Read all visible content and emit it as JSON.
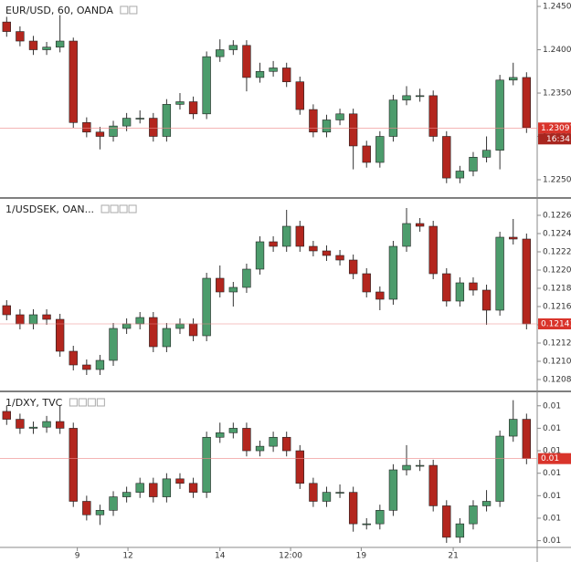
{
  "chart_data": [
    {
      "type": "candlestick",
      "title": "EUR/USD, 60, OANDA",
      "up_color": "#4c9c6c",
      "down_color": "#b3261e",
      "open": [
        1.2432,
        1.2421,
        1.241,
        1.24,
        1.2403,
        1.241,
        1.2316,
        1.2305,
        1.23,
        1.2312,
        1.2321,
        1.2321,
        1.23,
        1.2337,
        1.234,
        1.2326,
        1.2392,
        1.24,
        1.2405,
        1.2368,
        1.2375,
        1.2379,
        1.2363,
        1.2331,
        1.2305,
        1.2319,
        1.2326,
        1.2289,
        1.227,
        1.23,
        1.2342,
        1.2347,
        1.2347,
        1.23,
        1.2252,
        1.226,
        1.2276,
        1.2284,
        1.2365,
        1.2368
      ],
      "high": [
        1.2438,
        1.2427,
        1.2416,
        1.2409,
        1.244,
        1.2414,
        1.2322,
        1.2311,
        1.2318,
        1.2327,
        1.233,
        1.2327,
        1.2343,
        1.235,
        1.2346,
        1.2398,
        1.2412,
        1.2411,
        1.2411,
        1.2385,
        1.2387,
        1.2385,
        1.2369,
        1.2337,
        1.2325,
        1.2332,
        1.2332,
        1.2295,
        1.2306,
        1.2348,
        1.2358,
        1.2355,
        1.2353,
        1.2306,
        1.2266,
        1.2282,
        1.23,
        1.2371,
        1.2385,
        1.2374
      ],
      "low": [
        1.2415,
        1.2404,
        1.2394,
        1.2394,
        1.2397,
        1.231,
        1.2299,
        1.2285,
        1.2294,
        1.2306,
        1.2315,
        1.2294,
        1.2294,
        1.2331,
        1.232,
        1.232,
        1.2386,
        1.2394,
        1.2352,
        1.2362,
        1.2369,
        1.2357,
        1.2325,
        1.2299,
        1.2299,
        1.2313,
        1.2262,
        1.2264,
        1.2264,
        1.2294,
        1.2336,
        1.234,
        1.2294,
        1.2246,
        1.2246,
        1.2254,
        1.227,
        1.2262,
        1.2359,
        1.2304
      ],
      "close": [
        1.2421,
        1.241,
        1.24,
        1.2403,
        1.241,
        1.2316,
        1.2305,
        1.23,
        1.2312,
        1.2321,
        1.2321,
        1.23,
        1.2337,
        1.234,
        1.2326,
        1.2392,
        1.24,
        1.2405,
        1.2368,
        1.2375,
        1.2379,
        1.2363,
        1.2331,
        1.2305,
        1.2319,
        1.2326,
        1.2289,
        1.227,
        1.23,
        1.2342,
        1.2347,
        1.2347,
        1.23,
        1.2252,
        1.226,
        1.2276,
        1.2284,
        1.2365,
        1.2368,
        1.231
      ],
      "ylim": [
        1.223,
        1.24574
      ],
      "yticks": [
        {
          "value": 1.245,
          "label": "1.24500"
        },
        {
          "value": 1.24,
          "label": "1.24000"
        },
        {
          "value": 1.235,
          "label": "1.23500"
        },
        {
          "value": 1.23,
          "label": "1.23000"
        },
        {
          "value": 1.225,
          "label": "1.22500"
        }
      ],
      "last_price": {
        "value": 1.23097,
        "label": "1.23097"
      },
      "countdown": "16:34"
    },
    {
      "type": "candlestick",
      "title": "1/USDSEK, OAN...",
      "up_color": "#4c9c6c",
      "down_color": "#b3261e",
      "open": [
        0.12161,
        0.12151,
        0.12141,
        0.12151,
        0.12146,
        0.12111,
        0.12096,
        0.12091,
        0.12101,
        0.12136,
        0.12141,
        0.12148,
        0.12116,
        0.12136,
        0.12141,
        0.12128,
        0.12191,
        0.12176,
        0.12181,
        0.12201,
        0.12231,
        0.12226,
        0.12248,
        0.12226,
        0.12221,
        0.12216,
        0.12211,
        0.12196,
        0.12176,
        0.12168,
        0.12226,
        0.12251,
        0.12248,
        0.12196,
        0.12166,
        0.12186,
        0.12178,
        0.12156,
        0.12236,
        0.12234
      ],
      "high": [
        0.12167,
        0.12157,
        0.12157,
        0.12157,
        0.12152,
        0.12117,
        0.12102,
        0.12107,
        0.12142,
        0.12147,
        0.12154,
        0.12154,
        0.12142,
        0.12147,
        0.12147,
        0.12197,
        0.12205,
        0.12187,
        0.12207,
        0.12237,
        0.12237,
        0.12266,
        0.12254,
        0.12232,
        0.12227,
        0.12222,
        0.12217,
        0.12202,
        0.12182,
        0.12232,
        0.12268,
        0.12257,
        0.12254,
        0.12202,
        0.12192,
        0.12192,
        0.12184,
        0.12242,
        0.12256,
        0.1224
      ],
      "low": [
        0.12145,
        0.12135,
        0.12135,
        0.1214,
        0.12105,
        0.1209,
        0.12085,
        0.12085,
        0.12095,
        0.1213,
        0.12135,
        0.1211,
        0.1211,
        0.1213,
        0.12122,
        0.12122,
        0.1217,
        0.1216,
        0.12175,
        0.12195,
        0.1222,
        0.1222,
        0.1222,
        0.12215,
        0.1221,
        0.12205,
        0.1219,
        0.1217,
        0.12156,
        0.12162,
        0.1222,
        0.12242,
        0.1219,
        0.1216,
        0.1216,
        0.12172,
        0.1214,
        0.1215,
        0.12228,
        0.12135
      ],
      "close": [
        0.12151,
        0.12141,
        0.12151,
        0.12146,
        0.12111,
        0.12096,
        0.12091,
        0.12101,
        0.12136,
        0.12141,
        0.12148,
        0.12116,
        0.12136,
        0.12141,
        0.12128,
        0.12191,
        0.12176,
        0.12181,
        0.12201,
        0.12231,
        0.12226,
        0.12248,
        0.12226,
        0.12221,
        0.12216,
        0.12211,
        0.12196,
        0.12176,
        0.12168,
        0.12226,
        0.12251,
        0.12248,
        0.12196,
        0.12166,
        0.12186,
        0.12178,
        0.12156,
        0.12236,
        0.12234,
        0.12141
      ],
      "ylim": [
        0.12068,
        0.12278
      ],
      "yticks": [
        {
          "value": 0.1226,
          "label": "0.12260"
        },
        {
          "value": 0.1224,
          "label": "0.12240"
        },
        {
          "value": 0.1222,
          "label": "0.12220"
        },
        {
          "value": 0.122,
          "label": "0.12200"
        },
        {
          "value": 0.1218,
          "label": "0.12180"
        },
        {
          "value": 0.1216,
          "label": "0.12160"
        },
        {
          "value": 0.1214,
          "label": "0.12140"
        },
        {
          "value": 0.1212,
          "label": "0.12120"
        },
        {
          "value": 0.121,
          "label": "0.12100"
        },
        {
          "value": 0.1208,
          "label": "0.12080"
        }
      ],
      "last_price": {
        "value": 0.12141,
        "label": "0.12141"
      }
    },
    {
      "type": "candlestick",
      "title": "1/DXY, TVC",
      "up_color": "#4c9c6c",
      "down_color": "#b3261e",
      "open": [
        0.011195,
        0.011188,
        0.01118,
        0.011181,
        0.011186,
        0.01118,
        0.011115,
        0.011103,
        0.011107,
        0.011119,
        0.011123,
        0.011131,
        0.011119,
        0.011135,
        0.011131,
        0.011123,
        0.011172,
        0.011176,
        0.01118,
        0.01116,
        0.011164,
        0.011172,
        0.01116,
        0.011131,
        0.011115,
        0.011123,
        0.011123,
        0.011095,
        0.011095,
        0.011107,
        0.011143,
        0.011147,
        0.011147,
        0.011111,
        0.011083,
        0.011095,
        0.011111,
        0.011115,
        0.011173,
        0.011188
      ],
      "high": [
        0.0112,
        0.011193,
        0.011186,
        0.011191,
        0.0112,
        0.011185,
        0.01112,
        0.011112,
        0.011124,
        0.011128,
        0.011136,
        0.011136,
        0.01114,
        0.01114,
        0.011136,
        0.011177,
        0.011185,
        0.011185,
        0.011185,
        0.011169,
        0.011177,
        0.011177,
        0.011165,
        0.011136,
        0.011128,
        0.01113,
        0.011128,
        0.0111,
        0.011112,
        0.011148,
        0.011165,
        0.011152,
        0.011152,
        0.011116,
        0.0111,
        0.011116,
        0.011125,
        0.011178,
        0.011205,
        0.011193
      ],
      "low": [
        0.011183,
        0.011175,
        0.011175,
        0.011176,
        0.011175,
        0.01111,
        0.011098,
        0.011094,
        0.011102,
        0.011114,
        0.011118,
        0.011114,
        0.011114,
        0.011126,
        0.011118,
        0.011118,
        0.011167,
        0.011171,
        0.011155,
        0.011155,
        0.011159,
        0.011155,
        0.011126,
        0.01111,
        0.01111,
        0.011118,
        0.011088,
        0.01109,
        0.01109,
        0.011102,
        0.011138,
        0.011142,
        0.011106,
        0.011078,
        0.011078,
        0.01109,
        0.011106,
        0.01111,
        0.011168,
        0.011148
      ],
      "close": [
        0.011188,
        0.01118,
        0.011181,
        0.011186,
        0.01118,
        0.011115,
        0.011103,
        0.011107,
        0.011119,
        0.011123,
        0.011131,
        0.011119,
        0.011135,
        0.011131,
        0.011123,
        0.011172,
        0.011176,
        0.01118,
        0.01116,
        0.011164,
        0.011172,
        0.01116,
        0.011131,
        0.011115,
        0.011123,
        0.011123,
        0.011095,
        0.011095,
        0.011107,
        0.011143,
        0.011147,
        0.011147,
        0.011111,
        0.011083,
        0.011095,
        0.011111,
        0.011115,
        0.011173,
        0.011188,
        0.011153
      ],
      "ylim": [
        0.011074,
        0.011212
      ],
      "yticks": [
        {
          "value": 0.0112,
          "label": "0.01"
        },
        {
          "value": 0.01118,
          "label": "0.01"
        },
        {
          "value": 0.01116,
          "label": "0.01"
        },
        {
          "value": 0.01114,
          "label": "0.01"
        },
        {
          "value": 0.01112,
          "label": "0.01"
        },
        {
          "value": 0.0111,
          "label": "0.01"
        },
        {
          "value": 0.01108,
          "label": "0.01"
        }
      ],
      "last_price": {
        "value": 0.011153,
        "label": "0.01"
      },
      "xlim": [
        -0.5,
        39.8
      ],
      "xticks": [
        {
          "value": 5.3,
          "label": "9"
        },
        {
          "value": 9.1,
          "label": "12"
        },
        {
          "value": 16,
          "label": "14"
        },
        {
          "value": 21.3,
          "label": "12:00"
        },
        {
          "value": 26.6,
          "label": "19"
        },
        {
          "value": 33.5,
          "label": "21"
        }
      ]
    }
  ]
}
